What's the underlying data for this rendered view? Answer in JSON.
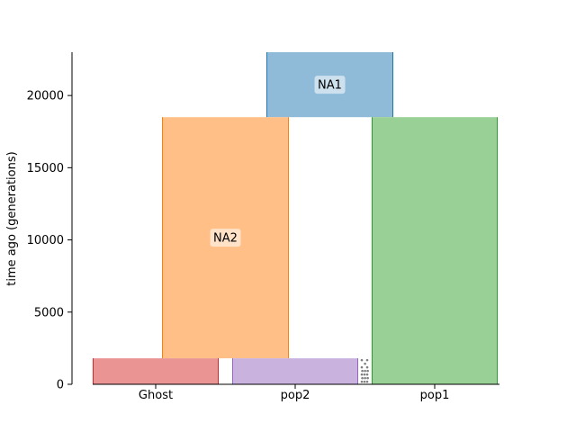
{
  "chart_data": {
    "type": "demography",
    "ylabel": "time ago (generations)",
    "ylim": [
      0,
      23000
    ],
    "yticks": [
      0,
      5000,
      10000,
      15000,
      20000
    ],
    "x_categories": [
      "Ghost",
      "pop2",
      "pop1"
    ],
    "demes": [
      {
        "name": "NA1",
        "label": "NA1",
        "start_time": 23000,
        "end_time": 18500,
        "fill": "#8fbbd9",
        "edge": "#1f77b4"
      },
      {
        "name": "NA2",
        "label": "NA2",
        "start_time": 18500,
        "end_time": 1800,
        "fill": "#ffbf86",
        "edge": "#ff7f0e"
      },
      {
        "name": "pop1",
        "label": "",
        "start_time": 18500,
        "end_time": 0,
        "fill": "#98d095",
        "edge": "#2ca02c"
      },
      {
        "name": "Ghost",
        "label": "",
        "start_time": 1800,
        "end_time": 0,
        "fill": "#ea9494",
        "edge": "#d62728"
      },
      {
        "name": "pop2",
        "label": "",
        "start_time": 1800,
        "end_time": 0,
        "fill": "#c9b3de",
        "edge": "#9467bd"
      }
    ],
    "migration_markers": {
      "color": "#7f7f7f",
      "time_range": [
        0,
        1800
      ]
    }
  }
}
